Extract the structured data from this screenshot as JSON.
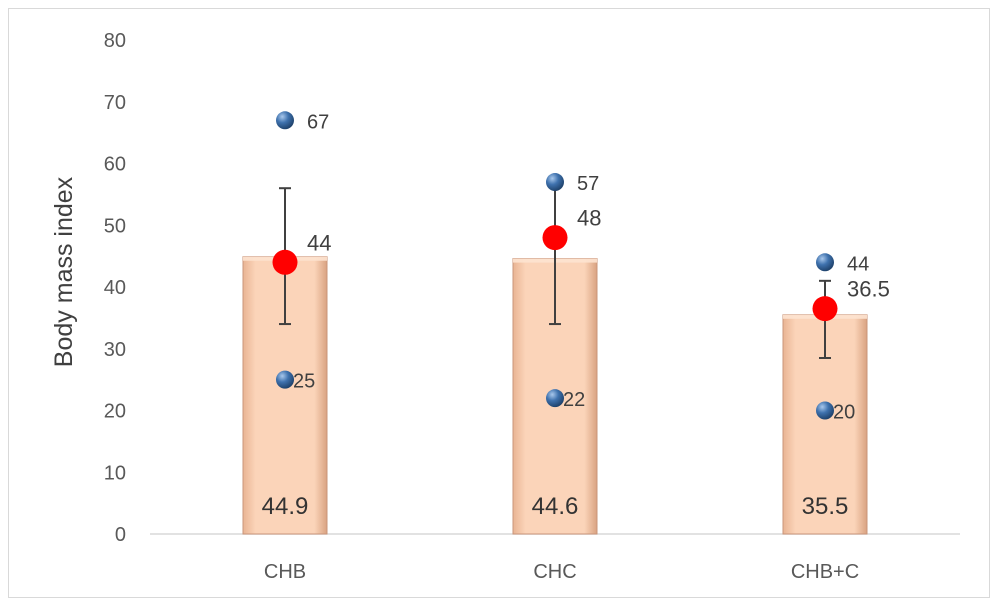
{
  "chart_data": {
    "type": "bar",
    "title": "",
    "xlabel": "",
    "ylabel": "Body mass index",
    "ylim": [
      0,
      80
    ],
    "yticks": [
      0,
      10,
      20,
      30,
      40,
      50,
      60,
      70,
      80
    ],
    "grid": false,
    "legend": "none",
    "categories": [
      "CHB",
      "CHC",
      "CHB+C"
    ],
    "bars": {
      "values": [
        44.9,
        44.6,
        35.5
      ],
      "labels": [
        "44.9",
        "44.6",
        "35.5"
      ]
    },
    "mean_points": {
      "values": [
        44,
        48,
        36.5
      ],
      "labels": [
        "44",
        "48",
        "36.5"
      ]
    },
    "error_bars": {
      "upper": [
        56,
        57,
        41
      ],
      "lower": [
        34,
        34,
        28.5
      ]
    },
    "max_points": {
      "values": [
        67,
        57,
        44
      ],
      "labels": [
        "67",
        "57",
        "44"
      ]
    },
    "min_points": {
      "values": [
        25,
        22,
        20
      ],
      "labels": [
        "25",
        "22",
        "20"
      ]
    },
    "colors": {
      "bar_fill": "#f8cbad",
      "bar_edge": "#c9957a",
      "mean_point": "#ff0000",
      "extreme_point": "#2e5f95",
      "error_bar": "#404040",
      "axis": "#d9d9d9"
    }
  }
}
